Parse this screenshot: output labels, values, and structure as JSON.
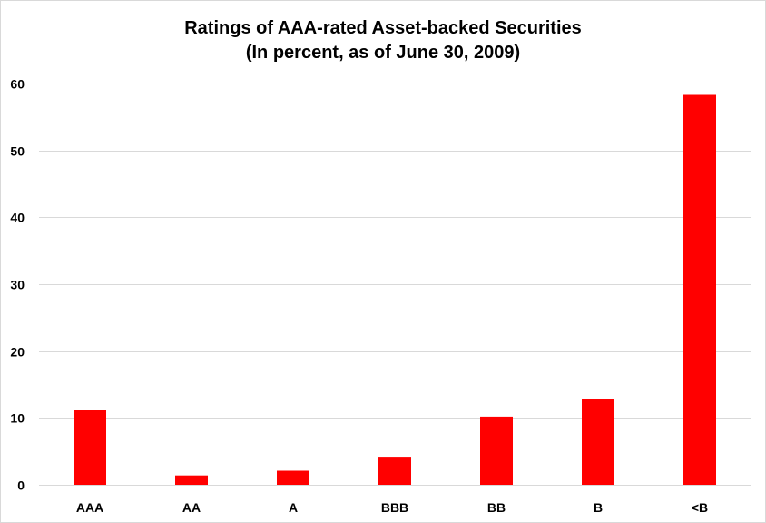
{
  "chart_data": {
    "type": "bar",
    "title": "Ratings of AAA-rated Asset-backed Securities",
    "subtitle": "(In percent, as of June 30, 2009)",
    "xlabel": "",
    "ylabel": "",
    "categories": [
      "AAA",
      "AA",
      "A",
      "BBB",
      "BB",
      "B",
      "<B"
    ],
    "values": [
      11.2,
      1.4,
      2.1,
      4.2,
      10.2,
      12.9,
      58.3
    ],
    "ylim": [
      0,
      60
    ],
    "yticks": [
      "0",
      "10",
      "20",
      "30",
      "40",
      "50",
      "60"
    ],
    "grid": true,
    "legend": "none",
    "bar_color": "#ff0000",
    "grid_color": "#d9d9d9"
  }
}
